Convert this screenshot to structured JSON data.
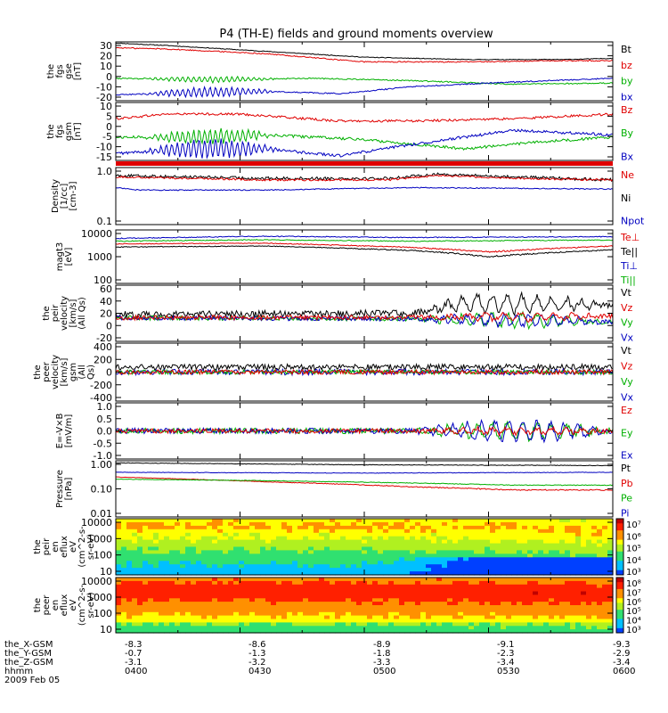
{
  "title": "P4 (TH-E) fields and ground moments overview",
  "chart_data": {
    "type": "line",
    "title": "P4 (TH-E) fields and ground moments overview",
    "x_ticks": [
      "0400",
      "0430",
      "0500",
      "0530",
      "0600"
    ],
    "panels": [
      {
        "id": "fgs-gse",
        "ylabel": [
          "the",
          "fgs",
          "gse",
          "[nT]"
        ],
        "ylim": [
          -20,
          30
        ],
        "yticks": [
          "30",
          "20",
          "10",
          "0",
          "-10",
          "-20"
        ],
        "legend": [
          {
            "label": "Bt",
            "color": "#000000"
          },
          {
            "label": "bz",
            "color": "#e00000"
          },
          {
            "label": "by",
            "color": "#00b000"
          },
          {
            "label": "bx",
            "color": "#0000c0"
          }
        ],
        "series": [
          {
            "name": "Bt",
            "color": "#000000",
            "x": [
              0,
              0.1,
              0.3,
              0.5,
              0.7,
              0.9,
              1
            ],
            "y": [
              29,
              27,
              22,
              17,
              15,
              15,
              16
            ],
            "noise": 0.3
          },
          {
            "name": "bz",
            "color": "#e00000",
            "x": [
              0,
              0.1,
              0.3,
              0.5,
              0.7,
              0.9,
              1
            ],
            "y": [
              25,
              24,
              20,
              13,
              13,
              14,
              14
            ],
            "noise": 0.5
          },
          {
            "name": "by",
            "color": "#00b000",
            "x": [
              0,
              0.2,
              0.4,
              0.6,
              0.8,
              1
            ],
            "y": [
              -1,
              -2,
              -1,
              -3,
              -6,
              -5
            ],
            "noise": 0.5,
            "wave": [
              0.05,
              0.33,
              2.5,
              0.011
            ]
          },
          {
            "name": "bx",
            "color": "#0000c0",
            "x": [
              0,
              0.15,
              0.3,
              0.45,
              0.6,
              0.8,
              1
            ],
            "y": [
              -15,
              -13,
              -12,
              -14,
              -8,
              -4,
              -1
            ],
            "noise": 0.5,
            "wave": [
              0.05,
              0.33,
              4,
              0.011
            ]
          }
        ]
      },
      {
        "id": "fgs-gsm",
        "ylabel": [
          "the",
          "fgs",
          "gsm",
          "[nT]"
        ],
        "ylim": [
          -15,
          10
        ],
        "yticks": [
          "10",
          "5",
          "0",
          "-5",
          "-10",
          "-15"
        ],
        "legend": [
          {
            "label": "Bz",
            "color": "#e00000"
          },
          {
            "label": "By",
            "color": "#00b000"
          },
          {
            "label": "Bx",
            "color": "#0000c0"
          }
        ],
        "series": [
          {
            "name": "Bz",
            "color": "#e00000",
            "x": [
              0,
              0.1,
              0.25,
              0.45,
              0.6,
              0.8,
              1
            ],
            "y": [
              3,
              5,
              5,
              2,
              2,
              3,
              5
            ],
            "noise": 0.5
          },
          {
            "name": "By",
            "color": "#00b000",
            "x": [
              0,
              0.15,
              0.3,
              0.5,
              0.7,
              0.85,
              1
            ],
            "y": [
              -5,
              -5,
              -4,
              -6,
              -10,
              -7,
              -5
            ],
            "noise": 0.6,
            "wave": [
              0.05,
              0.33,
              3,
              0.011
            ]
          },
          {
            "name": "Bx",
            "color": "#0000c0",
            "x": [
              0,
              0.15,
              0.3,
              0.45,
              0.6,
              0.8,
              1
            ],
            "y": [
              -12,
              -10,
              -10,
              -13,
              -8,
              -2,
              -4
            ],
            "noise": 0.6,
            "wave": [
              0.05,
              0.33,
              4,
              0.011
            ]
          }
        ]
      },
      {
        "id": "density",
        "ylabel": [
          "Density",
          "[1/cc]",
          "[cm-3]"
        ],
        "ylim": [
          0.1,
          1.2
        ],
        "log": true,
        "yticks": [
          "1.0",
          "0.1"
        ],
        "legend": [
          {
            "label": "Ne",
            "color": "#e00000"
          },
          {
            "label": "Ni",
            "color": "#000000"
          },
          {
            "label": "Npot",
            "color": "#0000c0"
          }
        ],
        "series": [
          {
            "name": "Ni",
            "color": "#000000",
            "x": [
              0,
              0.3,
              0.55,
              0.65,
              0.8,
              1
            ],
            "y": [
              0.85,
              0.75,
              0.75,
              0.9,
              0.8,
              0.7
            ],
            "noise": 0.05
          },
          {
            "name": "Ne",
            "color": "#e00000",
            "x": [
              0,
              0.3,
              0.55,
              0.65,
              0.8,
              1
            ],
            "y": [
              0.8,
              0.7,
              0.7,
              0.85,
              0.75,
              0.7
            ],
            "noise": 0.03
          },
          {
            "name": "Npot",
            "color": "#0000c0",
            "x": [
              0,
              0.05,
              0.3,
              0.6,
              1
            ],
            "y": [
              0.5,
              0.45,
              0.45,
              0.5,
              0.47
            ],
            "noise": 0.01
          }
        ]
      },
      {
        "id": "magt3",
        "ylabel": [
          "magt3",
          "[eV]"
        ],
        "ylim": [
          100,
          10000
        ],
        "log": true,
        "yticks": [
          "10000",
          "1000",
          "100"
        ],
        "legend": [
          {
            "label": "Te⊥",
            "color": "#e00000"
          },
          {
            "label": "Te||",
            "color": "#000000"
          },
          {
            "label": "Ti⊥",
            "color": "#0000c0"
          },
          {
            "label": "Ti||",
            "color": "#00b000"
          }
        ],
        "series": [
          {
            "name": "Ti⊥",
            "color": "#0000c0",
            "x": [
              0,
              0.3,
              0.6,
              1
            ],
            "y": [
              4800,
              5800,
              5200,
              5600
            ],
            "noise": 200
          },
          {
            "name": "Ti||",
            "color": "#00b000",
            "x": [
              0,
              0.3,
              0.6,
              1
            ],
            "y": [
              3800,
              4300,
              3800,
              4200
            ],
            "noise": 150
          },
          {
            "name": "Te⊥",
            "color": "#e00000",
            "x": [
              0,
              0.3,
              0.6,
              0.75,
              1
            ],
            "y": [
              3000,
              3200,
              2200,
              1500,
              2500
            ],
            "noise": 100
          },
          {
            "name": "Te||",
            "color": "#000000",
            "x": [
              0,
              0.3,
              0.6,
              0.75,
              1
            ],
            "y": [
              2300,
              2500,
              1700,
              1000,
              1800
            ],
            "noise": 80
          }
        ]
      },
      {
        "id": "peir-velocity",
        "ylabel": [
          "the",
          "peir",
          "velocity",
          "[km/s]",
          "(All Qs)"
        ],
        "ylim": [
          -40,
          60
        ],
        "yticks": [
          "60",
          "40",
          "20",
          "0",
          "-20"
        ],
        "legend": [
          {
            "label": "Vt",
            "color": "#000000"
          },
          {
            "label": "Vz",
            "color": "#e00000"
          },
          {
            "label": "Vy",
            "color": "#00b000"
          },
          {
            "label": "Vx",
            "color": "#0000c0"
          }
        ],
        "series": [
          {
            "name": "Vt",
            "color": "#000000",
            "x": [
              0,
              0.6,
              0.7,
              1
            ],
            "y": [
              8,
              10,
              28,
              25
            ],
            "noise": 6,
            "wave": [
              0.6,
              1,
              15,
              0.03
            ]
          },
          {
            "name": "Vy",
            "color": "#00b000",
            "x": [
              0,
              0.6,
              1
            ],
            "y": [
              2,
              0,
              -5
            ],
            "noise": 4,
            "wave": [
              0.6,
              1,
              12,
              0.03
            ]
          },
          {
            "name": "Vx",
            "color": "#0000c0",
            "x": [
              0,
              0.6,
              1
            ],
            "y": [
              2,
              0,
              -5
            ],
            "noise": 4,
            "wave": [
              0.6,
              1,
              10,
              0.025
            ]
          },
          {
            "name": "Vz",
            "color": "#e00000",
            "x": [
              0,
              0.6,
              1
            ],
            "y": [
              2,
              3,
              5
            ],
            "noise": 4,
            "wave": [
              0.6,
              1,
              6,
              0.035
            ]
          }
        ]
      },
      {
        "id": "peer-velocity",
        "ylabel": [
          "the",
          "peer",
          "velocity",
          "[km/s]",
          "gsm",
          "(All",
          "Qs)"
        ],
        "ylim": [
          -400,
          400
        ],
        "yticks": [
          "400",
          "200",
          "0",
          "-200",
          "-400"
        ],
        "legend": [
          {
            "label": "Vt",
            "color": "#000000"
          },
          {
            "label": "Vz",
            "color": "#e00000"
          },
          {
            "label": "Vy",
            "color": "#00b000"
          },
          {
            "label": "Vx",
            "color": "#0000c0"
          }
        ],
        "series": [
          {
            "name": "Vt",
            "color": "#000000",
            "x": [
              0,
              1
            ],
            "y": [
              70,
              70
            ],
            "noise": 40
          },
          {
            "name": "Vx",
            "color": "#0000c0",
            "x": [
              0,
              1
            ],
            "y": [
              0,
              0
            ],
            "noise": 40
          },
          {
            "name": "Vy",
            "color": "#00b000",
            "x": [
              0,
              1
            ],
            "y": [
              0,
              0
            ],
            "noise": 30
          },
          {
            "name": "Vz",
            "color": "#e00000",
            "x": [
              0,
              1
            ],
            "y": [
              0,
              0
            ],
            "noise": 30
          }
        ]
      },
      {
        "id": "e-field",
        "ylabel": [
          "E=-V×B",
          "[mV/m]"
        ],
        "ylim": [
          -1,
          1
        ],
        "yticks": [
          "1.0",
          "0.5",
          "0.0",
          "-0.5",
          "-1.0"
        ],
        "legend": [
          {
            "label": "Ez",
            "color": "#e00000"
          },
          {
            "label": "Ey",
            "color": "#00b000"
          },
          {
            "label": "Ex",
            "color": "#0000c0"
          }
        ],
        "series": [
          {
            "name": "Ey",
            "color": "#00b000",
            "x": [
              0,
              1
            ],
            "y": [
              0,
              0
            ],
            "noise": 0.1,
            "wave": [
              0.6,
              1,
              0.3,
              0.03
            ]
          },
          {
            "name": "Ex",
            "color": "#0000c0",
            "x": [
              0,
              1
            ],
            "y": [
              0,
              0
            ],
            "noise": 0.1,
            "wave": [
              0.6,
              1,
              0.35,
              0.028
            ]
          },
          {
            "name": "Ez",
            "color": "#e00000",
            "x": [
              0,
              1
            ],
            "y": [
              0,
              0
            ],
            "noise": 0.08,
            "wave": [
              0.6,
              1,
              0.1,
              0.03
            ]
          }
        ]
      },
      {
        "id": "pressure",
        "ylabel": [
          "Pressure",
          "[nPa]"
        ],
        "ylim": [
          0.01,
          1.2
        ],
        "log": true,
        "yticks": [
          "1.00",
          "0.10",
          "0.01"
        ],
        "legend": [
          {
            "label": "Pt",
            "color": "#000000"
          },
          {
            "label": "Pb",
            "color": "#e00000"
          },
          {
            "label": "Pe",
            "color": "#00b000"
          },
          {
            "label": "Pi",
            "color": "#0000c0"
          }
        ],
        "series": [
          {
            "name": "Pt",
            "color": "#000000",
            "x": [
              0,
              0.5,
              1
            ],
            "y": [
              1.0,
              0.85,
              0.8
            ],
            "noise": 0.02
          },
          {
            "name": "Pi",
            "color": "#0000c0",
            "x": [
              0,
              0.5,
              1
            ],
            "y": [
              0.45,
              0.42,
              0.45
            ],
            "noise": 0.01
          },
          {
            "name": "Pb",
            "color": "#e00000",
            "x": [
              0,
              0.3,
              0.6,
              0.8,
              1
            ],
            "y": [
              0.3,
              0.2,
              0.13,
              0.1,
              0.1
            ],
            "noise": 0.005
          },
          {
            "name": "Pe",
            "color": "#00b000",
            "x": [
              0,
              0.3,
              0.6,
              0.8,
              1
            ],
            "y": [
              0.25,
              0.22,
              0.18,
              0.15,
              0.15
            ],
            "noise": 0.005
          }
        ]
      }
    ],
    "spectrograms": [
      {
        "id": "peir-spec",
        "ylabel": [
          "the",
          "peir",
          "en",
          "eflux",
          "eV",
          "(cm^2-s-",
          "sr-eV)"
        ],
        "ylim": [
          5,
          20000
        ],
        "yticks": [
          "10000",
          "1000",
          "100",
          "10"
        ],
        "colorbar_ticks": [
          "10⁷",
          "10⁶",
          "10⁵",
          "10⁴",
          "10³"
        ],
        "kind": "ion"
      },
      {
        "id": "peer-spec",
        "ylabel": [
          "the",
          "peer",
          "en",
          "eflux",
          "eV",
          "(cm^2-s-",
          "sr-eV)"
        ],
        "ylim": [
          5,
          20000
        ],
        "yticks": [
          "10000",
          "1000",
          "100",
          "10"
        ],
        "colorbar_ticks": [
          "10⁸",
          "10⁷",
          "10⁶",
          "10⁵",
          "10⁴",
          "10³"
        ],
        "kind": "electron"
      }
    ],
    "ephemeris": {
      "rows": [
        {
          "label": "the_X-GSM",
          "values": [
            "-8.3",
            "-8.6",
            "-8.9",
            "-9.1",
            "-9.3"
          ]
        },
        {
          "label": "the_Y-GSM",
          "values": [
            "-0.7",
            "-1.3",
            "-1.8",
            "-2.3",
            "-2.9"
          ]
        },
        {
          "label": "the_Z-GSM",
          "values": [
            "-3.1",
            "-3.2",
            "-3.3",
            "-3.4",
            "-3.4"
          ]
        },
        {
          "label": "hhmm",
          "values": [
            "0400",
            "0430",
            "0500",
            "0530",
            "0600"
          ]
        }
      ],
      "date": "2009 Feb 05"
    }
  }
}
